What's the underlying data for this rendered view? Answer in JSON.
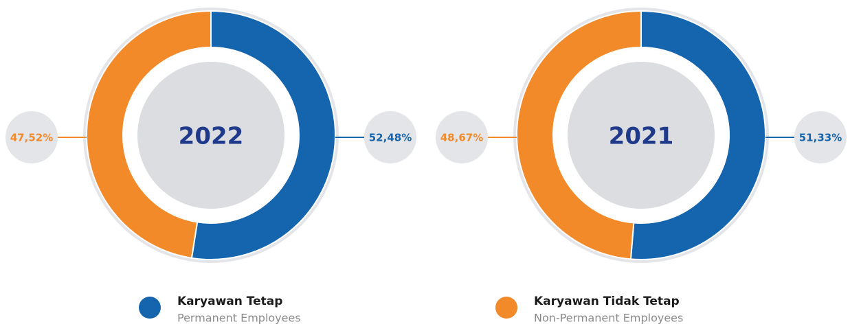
{
  "chart_data": [
    {
      "type": "pie",
      "title": "2022",
      "values": [
        52.48,
        47.52
      ],
      "value_labels": [
        "52,48%",
        "47,52%"
      ]
    },
    {
      "type": "pie",
      "title": "2021",
      "values": [
        51.33,
        48.67
      ],
      "value_labels": [
        "51,33%",
        "48,67%"
      ]
    }
  ],
  "legend": {
    "items": [
      {
        "name": "Karyawan Tetap",
        "name_en": "Permanent Employees",
        "color": "#1565ae"
      },
      {
        "name": "Karyawan Tidak Tetap",
        "name_en": "Non-Permanent Employees",
        "color": "#f28a2a"
      }
    ]
  }
}
